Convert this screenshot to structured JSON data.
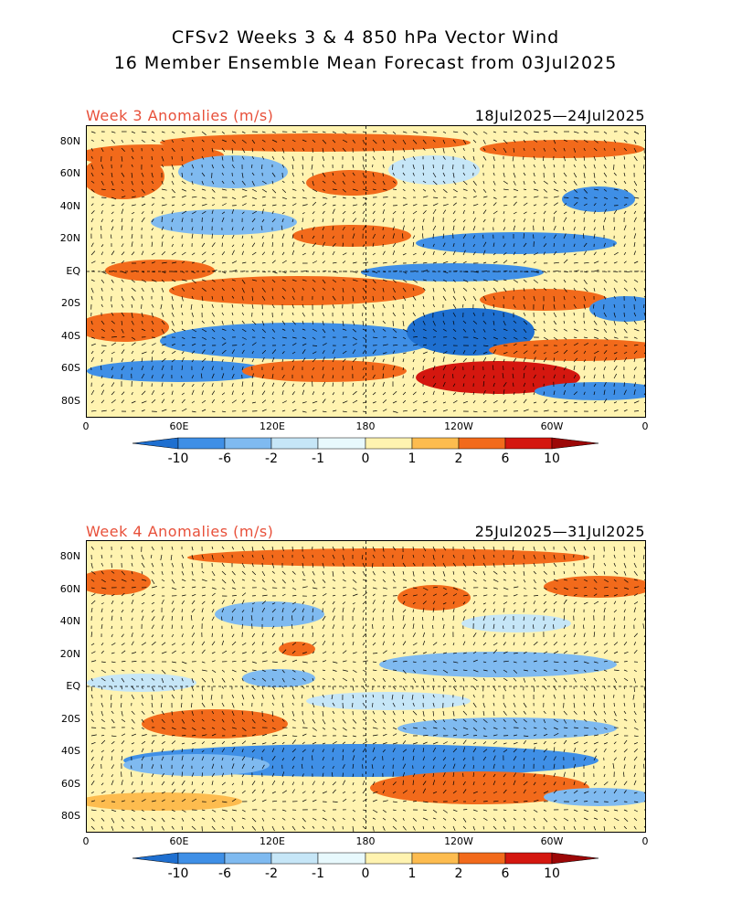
{
  "header": {
    "title_line1": "CFSv2 Weeks 3 & 4 850 hPa Vector Wind",
    "title_line2": "16 Member Ensemble Mean Forecast from 03Jul2025"
  },
  "panels": [
    {
      "label": "Week 3 Anomalies (m/s)",
      "dates": "18Jul2025—24Jul2025"
    },
    {
      "label": "Week 4 Anomalies (m/s)",
      "dates": "25Jul2025—31Jul2025"
    }
  ],
  "axes": {
    "lat_labels": [
      "80N",
      "60N",
      "40N",
      "20N",
      "EQ",
      "20S",
      "40S",
      "60S",
      "80S"
    ],
    "lon_labels": [
      "0",
      "60E",
      "120E",
      "180",
      "120W",
      "60W",
      "0"
    ]
  },
  "colorbar": {
    "labels": [
      "-10",
      "-6",
      "-2",
      "-1",
      "0",
      "1",
      "2",
      "6",
      "10"
    ],
    "colors": [
      "#1e6fd0",
      "#3f8fe6",
      "#7fbaf0",
      "#c6e6f7",
      "#e8f9fd",
      "#fff3b0",
      "#fdbc4f",
      "#f26a1b",
      "#d4170f",
      "#9c0707"
    ]
  }
}
